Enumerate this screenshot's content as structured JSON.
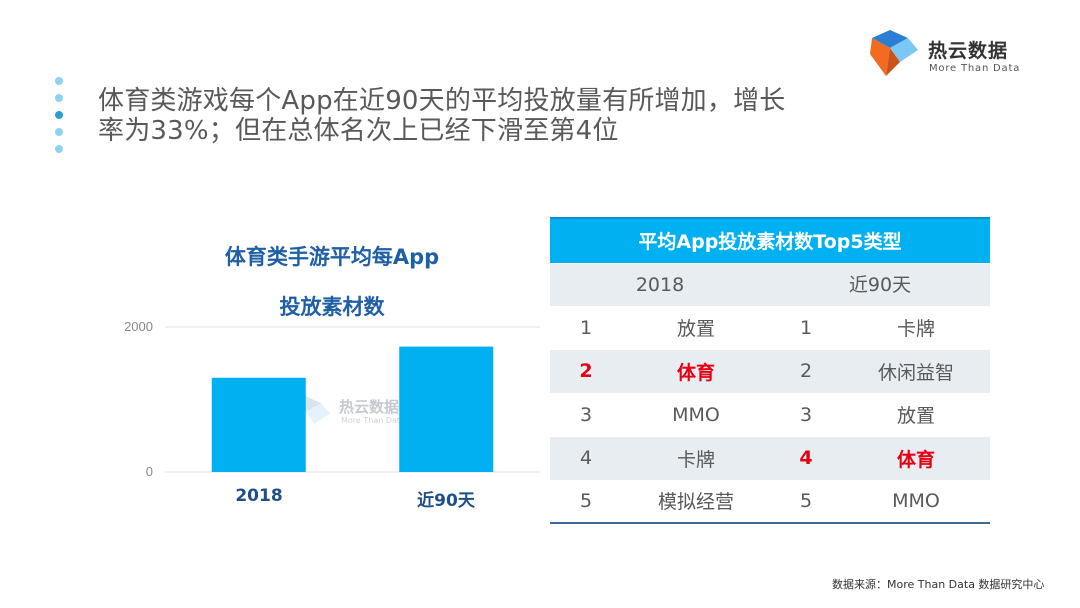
{
  "headline": {
    "line1": "体育类游戏每个App在近90天的平均投放量有所增加，增长",
    "line2": "率为33%；但在总体名次上已经下滑至第4位"
  },
  "logo": {
    "name": "热云数据",
    "tagline": "More Than Data",
    "colors": {
      "blue": "#2a7fd4",
      "light_blue": "#7cc8f4",
      "orange": "#f26b21"
    }
  },
  "chart_title": {
    "line1": "体育类手游平均每App",
    "line2": "投放素材数"
  },
  "watermark": {
    "name": "热云数据",
    "tagline": "More Than Data"
  },
  "chart_data": {
    "type": "bar",
    "title": "体育类手游平均每App 投放素材数",
    "categories": [
      "2018",
      "近90天"
    ],
    "values": [
      1300,
      1730
    ],
    "ylim": [
      0,
      2000
    ],
    "yticks": [
      "0",
      "2000"
    ],
    "grid": true,
    "bar_color": "#00b0f0"
  },
  "table": {
    "title": "平均App投放素材数Top5类型",
    "col_2018": "2018",
    "col_90": "近90天",
    "rows": [
      {
        "r1": "1",
        "n1": "放置",
        "r2": "1",
        "n2": "卡牌"
      },
      {
        "r1": "2",
        "n1": "体育",
        "r2": "2",
        "n2": "休闲益智"
      },
      {
        "r1": "3",
        "n1": "MMO",
        "r2": "3",
        "n2": "放置"
      },
      {
        "r1": "4",
        "n1": "卡牌",
        "r2": "4",
        "n2": "体育"
      },
      {
        "r1": "5",
        "n1": "模拟经营",
        "r2": "5",
        "n2": "MMO"
      }
    ],
    "highlight_color": "#e60012"
  },
  "source": "数据来源：More Than Data 数据研究中心"
}
